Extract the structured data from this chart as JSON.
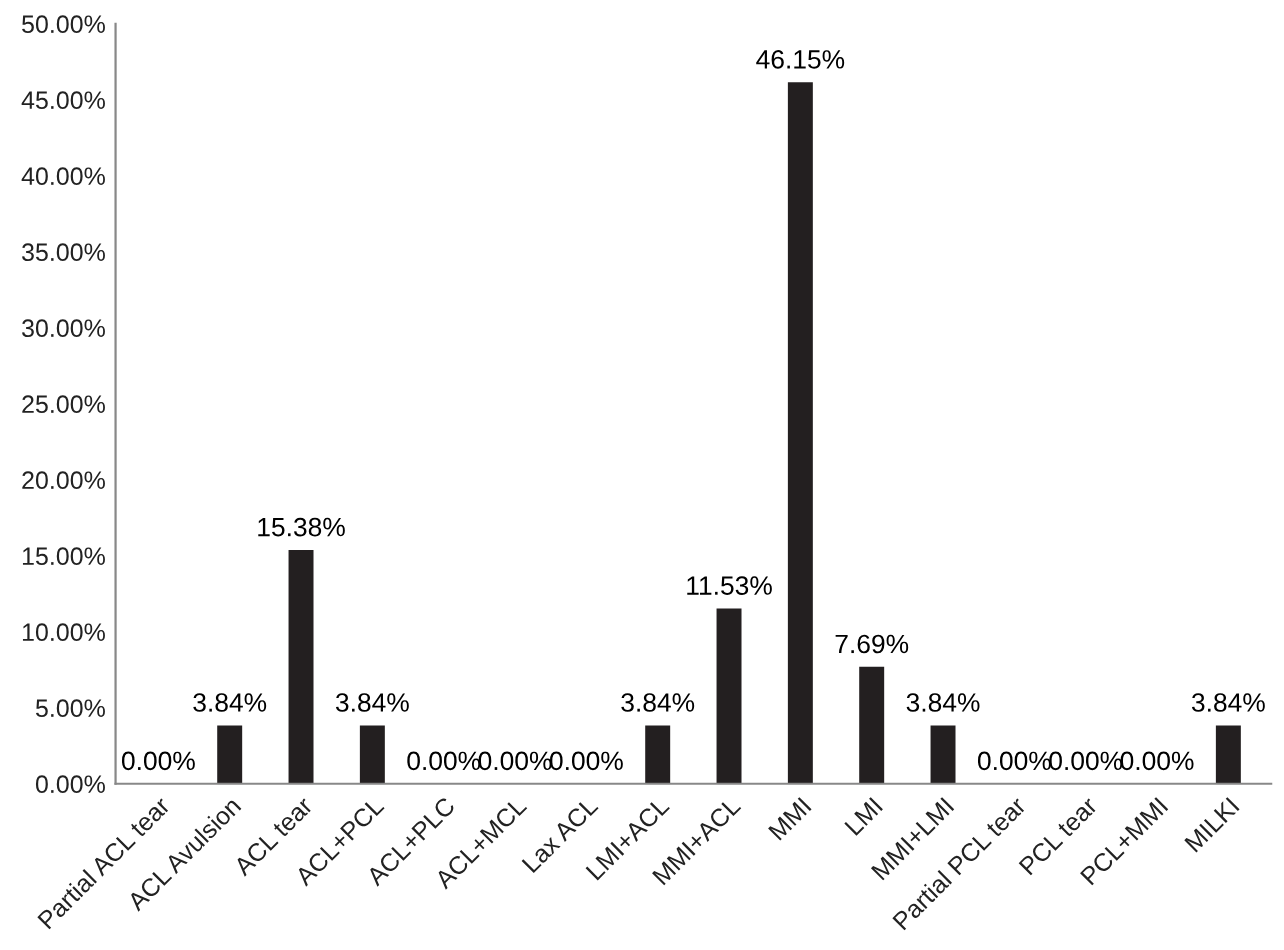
{
  "chart_data": {
    "type": "bar",
    "categories": [
      "Partial ACL tear",
      "ACL Avulsion",
      "ACL tear",
      "ACL+PCL",
      "ACL+PLC",
      "ACL+MCL",
      "Lax ACL",
      "LMI+ACL",
      "MMI+ACL",
      "MMI",
      "LMI",
      "MMI+LMI",
      "Partial PCL tear",
      "PCL tear",
      "PCL+MMI",
      "MILKI"
    ],
    "values": [
      0,
      3.84,
      15.38,
      3.84,
      0,
      0,
      0,
      3.84,
      11.53,
      46.15,
      7.69,
      3.84,
      0,
      0,
      0,
      3.84
    ],
    "value_labels": [
      "0.00%",
      "3.84%",
      "15.38%",
      "3.84%",
      "0.00%",
      "0.00%",
      "0.00%",
      "3.84%",
      "11.53%",
      "46.15%",
      "7.69%",
      "3.84%",
      "0.00%",
      "0.00%",
      "0.00%",
      "3.84%"
    ],
    "color": "#231f20",
    "ylim": [
      0,
      50
    ],
    "yticks": [
      {
        "value": 0,
        "label": "0.00%"
      },
      {
        "value": 5,
        "label": "5.00%"
      },
      {
        "value": 10,
        "label": "10.00%"
      },
      {
        "value": 15,
        "label": "15.00%"
      },
      {
        "value": 20,
        "label": "20.00%"
      },
      {
        "value": 25,
        "label": "25.00%"
      },
      {
        "value": 30,
        "label": "30.00%"
      },
      {
        "value": 35,
        "label": "35.00%"
      },
      {
        "value": 40,
        "label": "40.00%"
      },
      {
        "value": 45,
        "label": "45.00%"
      },
      {
        "value": 50,
        "label": "50.00%"
      }
    ],
    "grid": false
  }
}
